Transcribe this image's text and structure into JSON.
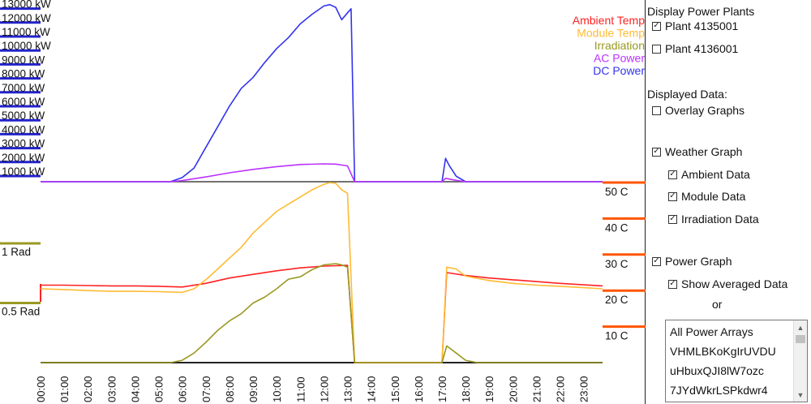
{
  "chart_data": {
    "type": "line",
    "x": [
      "00:00",
      "01:00",
      "02:00",
      "03:00",
      "04:00",
      "05:00",
      "06:00",
      "07:00",
      "08:00",
      "09:00",
      "10:00",
      "11:00",
      "12:00",
      "13:00",
      "14:00",
      "15:00",
      "16:00",
      "17:00",
      "18:00",
      "19:00",
      "20:00",
      "21:00",
      "22:00",
      "23:00"
    ],
    "power_axis_ticks": [
      "1000 kW",
      "2000 kW",
      "3000 kW",
      "4000 kW",
      "5000 kW",
      "6000 kW",
      "7000 kW",
      "8000 kW",
      "9000 kW",
      "10000 kW",
      "11000 kW",
      "12000 kW",
      "13000 kW"
    ],
    "temp_axis_ticks": [
      "10 C",
      "20 C",
      "30 C",
      "40 C",
      "50 C"
    ],
    "irradiation_axis_ticks": [
      "0.5 Rad",
      "1 Rad"
    ],
    "legend": {
      "placement": "top-right",
      "entries": [
        {
          "label": "Ambient Temp",
          "color": "#ff2222"
        },
        {
          "label": "Module Temp",
          "color": "#ffbb33"
        },
        {
          "label": "Irradiation",
          "color": "#999922"
        },
        {
          "label": "AC Power",
          "color": "#bb33ff"
        },
        {
          "label": "DC Power",
          "color": "#3333ee"
        }
      ]
    },
    "series": [
      {
        "name": "DC Power",
        "unit": "kW",
        "color": "#3333ee",
        "points": [
          [
            0,
            0
          ],
          [
            5,
            0
          ],
          [
            5.5,
            0
          ],
          [
            6,
            300
          ],
          [
            6.5,
            1000
          ],
          [
            7,
            2500
          ],
          [
            7.5,
            4000
          ],
          [
            8,
            5500
          ],
          [
            8.5,
            6800
          ],
          [
            9,
            7600
          ],
          [
            9.5,
            8700
          ],
          [
            10,
            9700
          ],
          [
            10.5,
            10500
          ],
          [
            11,
            11500
          ],
          [
            11.5,
            12200
          ],
          [
            12,
            12800
          ],
          [
            12.25,
            12900
          ],
          [
            12.5,
            12700
          ],
          [
            12.75,
            11800
          ],
          [
            13,
            12300
          ],
          [
            13.15,
            12600
          ],
          [
            13.3,
            0
          ],
          [
            14,
            0
          ],
          [
            16,
            0
          ],
          [
            17,
            0
          ],
          [
            17.15,
            1700
          ],
          [
            17.3,
            1200
          ],
          [
            17.6,
            400
          ],
          [
            18,
            0
          ],
          [
            23.8,
            0
          ]
        ]
      },
      {
        "name": "AC Power",
        "unit": "kW",
        "color": "#bb33ff",
        "points": [
          [
            0,
            0
          ],
          [
            5.5,
            0
          ],
          [
            6,
            80
          ],
          [
            7,
            350
          ],
          [
            8,
            650
          ],
          [
            9,
            900
          ],
          [
            10,
            1100
          ],
          [
            11,
            1250
          ],
          [
            12,
            1300
          ],
          [
            12.5,
            1280
          ],
          [
            13,
            1150
          ],
          [
            13.3,
            0
          ],
          [
            17,
            0
          ],
          [
            17.15,
            250
          ],
          [
            17.6,
            100
          ],
          [
            18,
            0
          ],
          [
            23.8,
            0
          ]
        ]
      },
      {
        "name": "Ambient Temp",
        "unit": "C",
        "color": "#ff2222",
        "points": [
          [
            0,
            21.5
          ],
          [
            1,
            21.5
          ],
          [
            2,
            21.4
          ],
          [
            3,
            21.3
          ],
          [
            4,
            21.3
          ],
          [
            5,
            21.2
          ],
          [
            6,
            21.0
          ],
          [
            7,
            22.0
          ],
          [
            8,
            23.5
          ],
          [
            9,
            24.5
          ],
          [
            10,
            25.5
          ],
          [
            11,
            26.3
          ],
          [
            12,
            26.8
          ],
          [
            13,
            27.0
          ],
          [
            13.3,
            0
          ],
          [
            14,
            0
          ],
          [
            16,
            0
          ],
          [
            17,
            0
          ],
          [
            17.2,
            25.0
          ],
          [
            18,
            24.2
          ],
          [
            19,
            23.5
          ],
          [
            20,
            23.0
          ],
          [
            21,
            22.5
          ],
          [
            22,
            22.0
          ],
          [
            23,
            21.6
          ],
          [
            23.8,
            21.3
          ]
        ]
      },
      {
        "name": "Module Temp",
        "unit": "C",
        "color": "#ffbb33",
        "points": [
          [
            0,
            20.5
          ],
          [
            1,
            20.3
          ],
          [
            2,
            20.0
          ],
          [
            3,
            19.8
          ],
          [
            4,
            19.8
          ],
          [
            5,
            19.7
          ],
          [
            6,
            19.5
          ],
          [
            6.5,
            20.5
          ],
          [
            7,
            23
          ],
          [
            7.5,
            26
          ],
          [
            8,
            29
          ],
          [
            8.5,
            32
          ],
          [
            9,
            36
          ],
          [
            9.5,
            39
          ],
          [
            10,
            42
          ],
          [
            10.5,
            44
          ],
          [
            11,
            46
          ],
          [
            11.5,
            48
          ],
          [
            12,
            49.5
          ],
          [
            12.25,
            50
          ],
          [
            12.5,
            49.8
          ],
          [
            12.75,
            48
          ],
          [
            13,
            47
          ],
          [
            13.3,
            0
          ],
          [
            14,
            0
          ],
          [
            16,
            0
          ],
          [
            17,
            0
          ],
          [
            17.2,
            26.5
          ],
          [
            17.6,
            26
          ],
          [
            18,
            24
          ],
          [
            19,
            22.8
          ],
          [
            20,
            22
          ],
          [
            21,
            21.5
          ],
          [
            22,
            21.2
          ],
          [
            23,
            20.8
          ],
          [
            23.8,
            20.5
          ]
        ]
      },
      {
        "name": "Irradiation",
        "unit": "Rad",
        "color": "#999922",
        "points": [
          [
            0,
            0
          ],
          [
            5,
            0
          ],
          [
            5.5,
            0
          ],
          [
            6,
            0.02
          ],
          [
            6.5,
            0.08
          ],
          [
            7,
            0.17
          ],
          [
            7.5,
            0.27
          ],
          [
            8,
            0.35
          ],
          [
            8.5,
            0.41
          ],
          [
            9,
            0.5
          ],
          [
            9.5,
            0.55
          ],
          [
            10,
            0.62
          ],
          [
            10.5,
            0.7
          ],
          [
            11,
            0.72
          ],
          [
            11.5,
            0.78
          ],
          [
            12,
            0.82
          ],
          [
            12.5,
            0.83
          ],
          [
            12.75,
            0.82
          ],
          [
            13,
            0.8
          ],
          [
            13.3,
            0
          ],
          [
            14,
            0
          ],
          [
            17,
            0
          ],
          [
            17.2,
            0.14
          ],
          [
            17.6,
            0.08
          ],
          [
            18,
            0.02
          ],
          [
            18.5,
            0
          ],
          [
            23.8,
            0
          ]
        ]
      }
    ]
  },
  "panel": {
    "plants_title": "Display Power Plants",
    "plants": [
      {
        "label": "Plant 4135001",
        "checked": true
      },
      {
        "label": "Plant 4136001",
        "checked": false
      }
    ],
    "displayed_title": "Displayed Data:",
    "overlay_label": "Overlay Graphs",
    "overlay_checked": false,
    "weather_label": "Weather Graph",
    "weather_checked": true,
    "ambient_label": "Ambient Data",
    "ambient_checked": true,
    "module_label": "Module Data",
    "module_checked": true,
    "irradiation_label": "Irradiation Data",
    "irradiation_checked": true,
    "power_label": "Power Graph",
    "power_checked": true,
    "averaged_label": "Show Averaged Data",
    "averaged_checked": true,
    "or_label": "or",
    "arrays": [
      "All Power Arrays",
      "VHMLBKoKgIrUVDU",
      "uHbuxQJI8lW7ozc",
      "7JYdWkrLSPkdwr4"
    ]
  }
}
